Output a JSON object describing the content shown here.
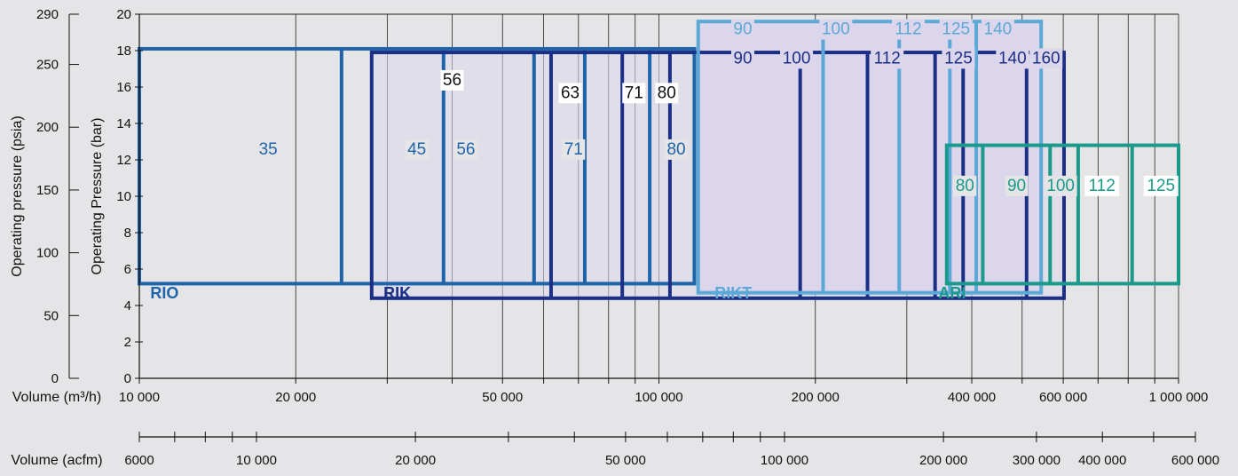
{
  "chart_data": {
    "type": "range-boxes",
    "title": "",
    "axes": {
      "left_psia": {
        "label": "Operating pressure (psia)",
        "ticks": [
          0,
          50,
          100,
          150,
          200,
          250,
          290
        ],
        "range": [
          0,
          290
        ]
      },
      "left_bar": {
        "label": "Operating Pressure (bar)",
        "ticks": [
          0,
          2,
          4,
          6,
          8,
          10,
          12,
          14,
          16,
          18,
          20
        ],
        "range": [
          0,
          20
        ]
      },
      "x_m3h": {
        "label": "Volume (m³/h)",
        "scale": "log",
        "range": [
          10000,
          1000000
        ],
        "tick_labels": [
          {
            "value": 10000,
            "text": "10 000"
          },
          {
            "value": 20000,
            "text": "20 000"
          },
          {
            "value": 50000,
            "text": "50 000"
          },
          {
            "value": 100000,
            "text": "100 000"
          },
          {
            "value": 200000,
            "text": "200 000"
          },
          {
            "value": 400000,
            "text": "400 000"
          },
          {
            "value": 600000,
            "text": "600 000"
          },
          {
            "value": 1000000,
            "text": "1 000 000"
          }
        ]
      },
      "x_acfm": {
        "label": "Volume (acfm)",
        "scale": "log",
        "range": [
          6000,
          600000
        ],
        "tick_labels": [
          {
            "value": 6000,
            "text": "6000"
          },
          {
            "value": 10000,
            "text": "10 000"
          },
          {
            "value": 20000,
            "text": "20 000"
          },
          {
            "value": 50000,
            "text": "50 000"
          },
          {
            "value": 100000,
            "text": "100 000"
          },
          {
            "value": 200000,
            "text": "200 000"
          },
          {
            "value": 300000,
            "text": "300 000"
          },
          {
            "value": 400000,
            "text": "400 000"
          },
          {
            "value": 600000,
            "text": "600 000"
          }
        ]
      }
    },
    "grid": true,
    "families": [
      {
        "name": "RIO",
        "color": "#1f63a8",
        "label_volume": 10500,
        "label_bar": 4.3,
        "pressure_bar": [
          5.2,
          18.1
        ],
        "edges_volume": [
          10000,
          24500,
          38500,
          57500,
          72000,
          96000,
          117000
        ],
        "sizes": [
          {
            "label": "35",
            "volume": 17700,
            "bar": 12.3
          },
          {
            "label": "45",
            "volume": 34200,
            "bar": 12.3
          },
          {
            "label": "56",
            "volume": 42500,
            "bar": 12.3
          },
          {
            "label": "71",
            "volume": 68500,
            "bar": 12.3
          },
          {
            "label": "80",
            "volume": 108000,
            "bar": 12.3
          }
        ]
      },
      {
        "name": "RIK",
        "color": "#1c2f86",
        "label_volume": 29500,
        "label_bar": 4.3,
        "pressure_bar": [
          4.4,
          17.9
        ],
        "edges_volume": [
          28000,
          62000,
          85000,
          105000,
          187000,
          252000,
          340000,
          385000,
          510000,
          602000
        ],
        "sizes": [
          {
            "label": "56",
            "volume": 40000,
            "bar": 16.1
          },
          {
            "label": "63",
            "volume": 67500,
            "bar": 15.4
          },
          {
            "label": "71",
            "volume": 89500,
            "bar": 15.4
          },
          {
            "label": "80",
            "volume": 103500,
            "bar": 15.4
          },
          {
            "label": "90",
            "volume": 145000,
            "bar": 17.3
          },
          {
            "label": "100",
            "volume": 184000,
            "bar": 17.3
          },
          {
            "label": "112",
            "volume": 275000,
            "bar": 17.3
          },
          {
            "label": "125",
            "volume": 377000,
            "bar": 17.3
          },
          {
            "label": "140",
            "volume": 479000,
            "bar": 17.3
          },
          {
            "label": "160",
            "volume": 556000,
            "bar": 17.3
          }
        ]
      },
      {
        "name": "RIKT",
        "color": "#5ca8d6",
        "label_volume": 128000,
        "label_bar": 4.3,
        "pressure_bar": [
          4.7,
          19.6
        ],
        "edges_volume": [
          119000,
          207000,
          290000,
          363000,
          408000,
          544000
        ],
        "sizes": [
          {
            "label": "90",
            "volume": 145000,
            "bar": 18.9
          },
          {
            "label": "100",
            "volume": 219000,
            "bar": 18.9
          },
          {
            "label": "112",
            "volume": 302000,
            "bar": 18.9
          },
          {
            "label": "125",
            "volume": 373000,
            "bar": 18.9
          },
          {
            "label": "140",
            "volume": 449000,
            "bar": 18.9
          }
        ]
      },
      {
        "name": "ARI",
        "color": "#1a9a8a",
        "label_volume": 345000,
        "label_bar": 4.3,
        "pressure_bar": [
          5.2,
          12.8
        ],
        "edges_volume": [
          358000,
          420000,
          566000,
          641000,
          814000,
          1000000
        ],
        "sizes": [
          {
            "label": "80",
            "volume": 388000,
            "bar": 10.3
          },
          {
            "label": "90",
            "volume": 488000,
            "bar": 10.3
          },
          {
            "label": "100",
            "volume": 593000,
            "bar": 10.3
          },
          {
            "label": "112",
            "volume": 712000,
            "bar": 10.3
          },
          {
            "label": "125",
            "volume": 925000,
            "bar": 10.3
          }
        ]
      }
    ]
  }
}
